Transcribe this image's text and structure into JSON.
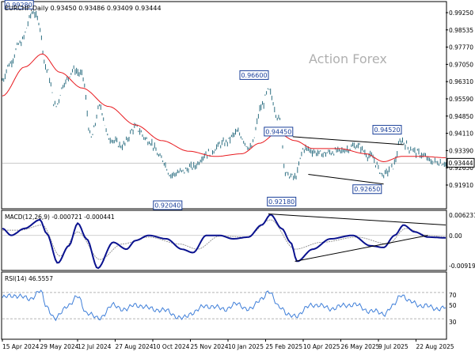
{
  "header": {
    "symbol_line": "EURCHF,Daily  0.93450 0.93486 0.93409 0.93444"
  },
  "watermark": "Action Forex",
  "colors": {
    "price": "#2d6f82",
    "ma": "#e8191e",
    "macd_main": "#0a128f",
    "macd_signal": "#999999",
    "rsi": "#3f7fd9",
    "trendline": "#000000",
    "axis": "#000000",
    "watermark": "#b0b0b0",
    "current_label_bg": "#ffffff"
  },
  "chart_data": [
    {
      "type": "line",
      "panel": "price",
      "ylim": [
        0.9174,
        0.9956
      ],
      "y_ticks": [
        "0.99250",
        "0.98535",
        "0.97770",
        "0.97050",
        "0.96310",
        "0.95590",
        "0.94850",
        "0.94110",
        "0.93390",
        "0.92650",
        "0.91910"
      ],
      "current_price_label": "0.93444",
      "current_price": 0.93444,
      "x_tick_labels": [
        "15 Apr 2024",
        "29 May 2024",
        "12 Jul 2024",
        "27 Aug 2024",
        "10 Oct 2024",
        "25 Nov 2024",
        "10 Jan 2025",
        "25 Feb 2025",
        "10 Apr 2025",
        "26 May 2025",
        "9 Jul 2025",
        "22 Aug 2025"
      ],
      "close_series_anchors": [
        [
          0,
          0.966
        ],
        [
          0.015,
          0.972
        ],
        [
          0.04,
          0.98
        ],
        [
          0.07,
          0.992
        ],
        [
          0.08,
          0.989
        ],
        [
          0.1,
          0.97
        ],
        [
          0.12,
          0.956
        ],
        [
          0.14,
          0.965
        ],
        [
          0.16,
          0.97
        ],
        [
          0.18,
          0.968
        ],
        [
          0.2,
          0.944
        ],
        [
          0.22,
          0.956
        ],
        [
          0.24,
          0.944
        ],
        [
          0.27,
          0.941
        ],
        [
          0.3,
          0.948
        ],
        [
          0.33,
          0.943
        ],
        [
          0.36,
          0.936
        ],
        [
          0.38,
          0.93
        ],
        [
          0.4,
          0.931
        ],
        [
          0.43,
          0.933
        ],
        [
          0.46,
          0.938
        ],
        [
          0.5,
          0.942
        ],
        [
          0.53,
          0.946
        ],
        [
          0.56,
          0.94
        ],
        [
          0.585,
          0.956
        ],
        [
          0.6,
          0.962
        ],
        [
          0.625,
          0.951
        ],
        [
          0.64,
          0.93
        ],
        [
          0.66,
          0.929
        ],
        [
          0.68,
          0.94
        ],
        [
          0.72,
          0.938
        ],
        [
          0.76,
          0.939
        ],
        [
          0.8,
          0.941
        ],
        [
          0.83,
          0.937
        ],
        [
          0.86,
          0.93
        ],
        [
          0.88,
          0.933
        ],
        [
          0.9,
          0.943
        ],
        [
          0.92,
          0.94
        ],
        [
          0.94,
          0.938
        ],
        [
          0.97,
          0.935
        ],
        [
          1.0,
          0.93444
        ]
      ],
      "ma_series_anchors": [
        [
          0,
          0.96
        ],
        [
          0.05,
          0.971
        ],
        [
          0.09,
          0.976
        ],
        [
          0.13,
          0.969
        ],
        [
          0.18,
          0.963
        ],
        [
          0.24,
          0.956
        ],
        [
          0.3,
          0.949
        ],
        [
          0.36,
          0.943
        ],
        [
          0.42,
          0.939
        ],
        [
          0.48,
          0.937
        ],
        [
          0.54,
          0.938
        ],
        [
          0.58,
          0.942
        ],
        [
          0.62,
          0.946
        ],
        [
          0.66,
          0.943
        ],
        [
          0.7,
          0.94
        ],
        [
          0.76,
          0.94
        ],
        [
          0.82,
          0.938
        ],
        [
          0.86,
          0.935
        ],
        [
          0.9,
          0.937
        ],
        [
          0.95,
          0.937
        ],
        [
          1.0,
          0.9365
        ]
      ],
      "annotations": [
        {
          "label": "0.99280",
          "x": 0.07,
          "y": 0.9928
        },
        {
          "label": "0.96600",
          "x": 0.6,
          "y": 0.966
        },
        {
          "label": "0.94450",
          "x": 0.655,
          "y": 0.9445
        },
        {
          "label": "0.94520",
          "x": 0.9,
          "y": 0.9452
        },
        {
          "label": "0.92650",
          "x": 0.855,
          "y": 0.9265
        },
        {
          "label": "0.92180",
          "x": 0.662,
          "y": 0.9218
        },
        {
          "label": "0.92040",
          "x": 0.405,
          "y": 0.9204
        }
      ],
      "channel_upper": [
        [
          0.655,
          0.9445
        ],
        [
          0.905,
          0.9415
        ]
      ],
      "channel_lower": [
        [
          0.69,
          0.9302
        ],
        [
          0.86,
          0.9265
        ]
      ]
    },
    {
      "type": "line",
      "panel": "macd",
      "title": "MACD(12,26,9) -0.000721 -0.000441",
      "ylim": [
        -0.0099,
        0.007
      ],
      "y_ticks": [
        "0.006231",
        "0.00",
        "-0.009191"
      ],
      "series": [
        {
          "name": "main",
          "anchors": [
            [
              0,
              0.002
            ],
            [
              0.02,
              0.0
            ],
            [
              0.05,
              0.002
            ],
            [
              0.085,
              0.0045
            ],
            [
              0.1,
              0.0005
            ],
            [
              0.125,
              -0.008
            ],
            [
              0.15,
              -0.003
            ],
            [
              0.17,
              0.0035
            ],
            [
              0.19,
              -0.001
            ],
            [
              0.215,
              -0.0095
            ],
            [
              0.25,
              -0.002
            ],
            [
              0.28,
              -0.004
            ],
            [
              0.3,
              -0.0015
            ],
            [
              0.33,
              0.0
            ],
            [
              0.37,
              -0.001
            ],
            [
              0.405,
              -0.004
            ],
            [
              0.43,
              -0.005
            ],
            [
              0.46,
              0.0
            ],
            [
              0.49,
              0.0
            ],
            [
              0.52,
              -0.001
            ],
            [
              0.555,
              -0.0005
            ],
            [
              0.585,
              0.003
            ],
            [
              0.605,
              0.006
            ],
            [
              0.63,
              0.002
            ],
            [
              0.65,
              -0.002
            ],
            [
              0.665,
              -0.0075
            ],
            [
              0.7,
              -0.004
            ],
            [
              0.74,
              -0.001
            ],
            [
              0.79,
              0.0
            ],
            [
              0.83,
              -0.003
            ],
            [
              0.86,
              -0.0035
            ],
            [
              0.885,
              0.0
            ],
            [
              0.905,
              0.003
            ],
            [
              0.93,
              0.001
            ],
            [
              0.96,
              -0.0005
            ],
            [
              1.0,
              -0.000721
            ]
          ]
        },
        {
          "name": "signal",
          "anchors": [
            [
              0,
              0.0015
            ],
            [
              0.04,
              0.0015
            ],
            [
              0.09,
              0.003
            ],
            [
              0.13,
              -0.006
            ],
            [
              0.17,
              0.001
            ],
            [
              0.22,
              -0.007
            ],
            [
              0.27,
              -0.0025
            ],
            [
              0.33,
              -0.0005
            ],
            [
              0.4,
              -0.0025
            ],
            [
              0.44,
              -0.004
            ],
            [
              0.49,
              -0.0002
            ],
            [
              0.55,
              -0.0005
            ],
            [
              0.605,
              0.0045
            ],
            [
              0.66,
              -0.004
            ],
            [
              0.72,
              -0.002
            ],
            [
              0.8,
              -0.0005
            ],
            [
              0.87,
              -0.0025
            ],
            [
              0.91,
              0.002
            ],
            [
              0.96,
              0.0
            ],
            [
              1.0,
              -0.000441
            ]
          ]
        }
      ],
      "trendline_upper": [
        [
          0.6,
          0.0062
        ],
        [
          1.0,
          0.003
        ]
      ],
      "trendline_lower": [
        [
          0.66,
          -0.0075
        ],
        [
          0.96,
          0.0
        ]
      ]
    },
    {
      "type": "line",
      "panel": "rsi",
      "title": "RSI(14) 46.5557",
      "ylim": [
        0,
        100
      ],
      "y_ticks": [
        "100",
        "70",
        "50",
        "30",
        "0"
      ],
      "level_lines": [
        70,
        30
      ],
      "series": [
        {
          "name": "RSI",
          "anchors": [
            [
              0,
              62
            ],
            [
              0.03,
              66
            ],
            [
              0.06,
              60
            ],
            [
              0.085,
              72
            ],
            [
              0.1,
              48
            ],
            [
              0.12,
              30
            ],
            [
              0.15,
              52
            ],
            [
              0.17,
              63
            ],
            [
              0.19,
              40
            ],
            [
              0.215,
              30
            ],
            [
              0.25,
              50
            ],
            [
              0.28,
              44
            ],
            [
              0.3,
              52
            ],
            [
              0.33,
              46
            ],
            [
              0.37,
              42
            ],
            [
              0.405,
              30
            ],
            [
              0.43,
              40
            ],
            [
              0.46,
              50
            ],
            [
              0.5,
              45
            ],
            [
              0.53,
              52
            ],
            [
              0.56,
              44
            ],
            [
              0.585,
              62
            ],
            [
              0.6,
              70
            ],
            [
              0.625,
              50
            ],
            [
              0.645,
              34
            ],
            [
              0.665,
              36
            ],
            [
              0.7,
              52
            ],
            [
              0.74,
              46
            ],
            [
              0.79,
              52
            ],
            [
              0.83,
              42
            ],
            [
              0.86,
              38
            ],
            [
              0.88,
              48
            ],
            [
              0.9,
              68
            ],
            [
              0.92,
              55
            ],
            [
              0.95,
              50
            ],
            [
              0.975,
              46
            ],
            [
              1.0,
              46.5557
            ]
          ]
        }
      ]
    }
  ]
}
